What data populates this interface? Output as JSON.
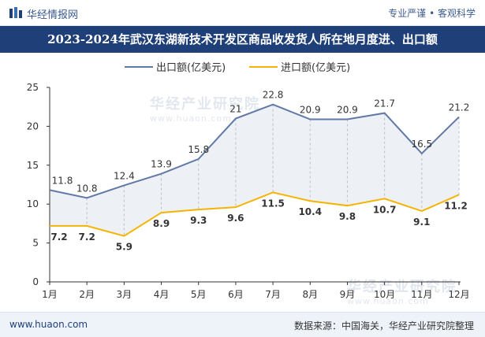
{
  "header": {
    "brand": "华经情报网",
    "tagline": "专业严谨 • 客观科学"
  },
  "title": "2023-2024年武汉东湖新技术开发区商品收发货人所在地月度进、出口额",
  "watermark": {
    "text": "华经产业研究院",
    "url": "www.huaon.com"
  },
  "footer": {
    "url": "www.huaon.com",
    "source": "数据来源：中国海关，华经产业研究院整理"
  },
  "colors": {
    "export": "#6179a6",
    "import": "#f5b400",
    "title_bg": "#1f3f78"
  },
  "chart_data": {
    "type": "line",
    "categories": [
      "1月",
      "2月",
      "3月",
      "4月",
      "5月",
      "6月",
      "7月",
      "8月",
      "9月",
      "10月",
      "11月",
      "12月"
    ],
    "series": [
      {
        "name": "出口额(亿美元)",
        "values": [
          11.8,
          10.8,
          12.4,
          13.9,
          15.8,
          21,
          22.8,
          20.9,
          20.9,
          21.7,
          16.5,
          21.2
        ]
      },
      {
        "name": "进口额(亿美元)",
        "values": [
          7.2,
          7.2,
          5.9,
          8.9,
          9.3,
          9.6,
          11.5,
          10.4,
          9.8,
          10.7,
          9.1,
          11.2
        ]
      }
    ],
    "ylim": [
      0,
      25
    ],
    "yticks": [
      0,
      5,
      10,
      15,
      20,
      25
    ],
    "legend": "top-center",
    "grid": false
  }
}
